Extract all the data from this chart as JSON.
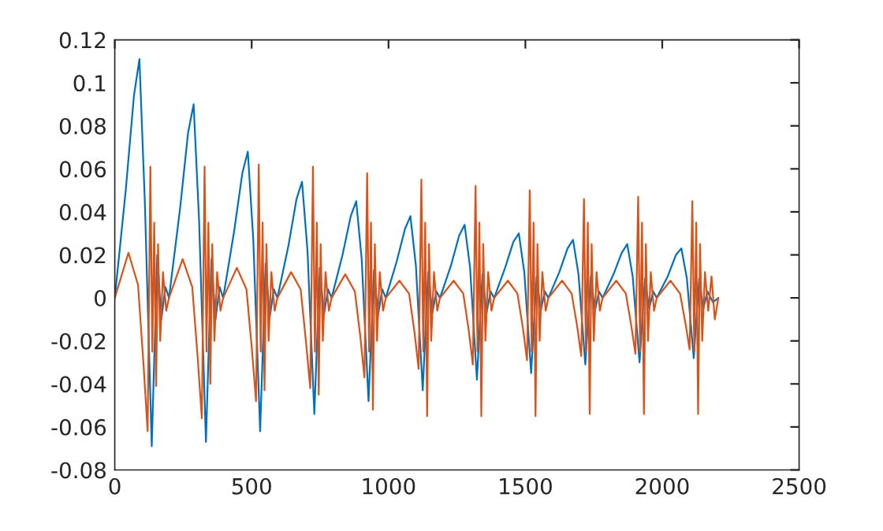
{
  "chart_data": {
    "type": "line",
    "xlim": [
      0,
      2500
    ],
    "xticks": [
      0,
      500,
      1000,
      1500,
      2000,
      2500
    ],
    "ylim": [
      -0.08,
      0.12
    ],
    "yticks": [
      -0.08,
      -0.06,
      -0.04,
      -0.02,
      0,
      0.02,
      0.04,
      0.06,
      0.08,
      0.1,
      0.12
    ],
    "grid": false,
    "legend": false,
    "line_style": "solid",
    "marker": "none",
    "series": [
      {
        "color": "#0072bd",
        "x": [
          0,
          40,
          70,
          90,
          110,
          135,
          155,
          170,
          185,
          198,
          238,
          268,
          288,
          308,
          333,
          353,
          368,
          383,
          396,
          436,
          466,
          486,
          506,
          531,
          551,
          566,
          581,
          594,
          634,
          664,
          684,
          704,
          729,
          749,
          764,
          779,
          792,
          832,
          862,
          882,
          902,
          927,
          947,
          962,
          977,
          990,
          1030,
          1060,
          1080,
          1100,
          1125,
          1145,
          1160,
          1175,
          1188,
          1228,
          1258,
          1278,
          1298,
          1323,
          1343,
          1358,
          1373,
          1386,
          1426,
          1456,
          1476,
          1496,
          1521,
          1541,
          1556,
          1571,
          1584,
          1624,
          1654,
          1674,
          1694,
          1719,
          1739,
          1754,
          1769,
          1782,
          1822,
          1852,
          1872,
          1892,
          1917,
          1937,
          1952,
          1967,
          1980,
          2020,
          2050,
          2070,
          2090,
          2115,
          2135,
          2150,
          2165,
          2185,
          2205
        ],
        "values": [
          0,
          0.05,
          0.094,
          0.111,
          0.044,
          -0.069,
          0.02,
          -0.01,
          0.005,
          0,
          0.041,
          0.077,
          0.09,
          0.036,
          -0.067,
          0.018,
          -0.01,
          0.005,
          0,
          0.031,
          0.058,
          0.068,
          0.027,
          -0.062,
          0.016,
          -0.009,
          0.004,
          0,
          0.024,
          0.046,
          0.054,
          0.022,
          -0.054,
          0.014,
          -0.008,
          0.004,
          0,
          0.02,
          0.038,
          0.045,
          0.018,
          -0.048,
          0.013,
          -0.008,
          0.004,
          0,
          0.017,
          0.032,
          0.038,
          0.015,
          -0.043,
          0.012,
          -0.007,
          0.003,
          0,
          0.015,
          0.029,
          0.034,
          0.014,
          -0.038,
          0.011,
          -0.007,
          0.003,
          0,
          0.014,
          0.026,
          0.03,
          0.012,
          -0.035,
          0.01,
          -0.006,
          0.003,
          0,
          0.012,
          0.023,
          0.027,
          0.011,
          -0.031,
          0.01,
          -0.006,
          0.003,
          0,
          0.011,
          0.021,
          0.025,
          0.01,
          -0.03,
          0.009,
          -0.005,
          0.003,
          0,
          0.01,
          0.02,
          0.023,
          0.009,
          -0.028,
          0.009,
          -0.005,
          0.003,
          -0.002,
          0
        ]
      },
      {
        "color": "#d95319",
        "x": [
          0,
          50,
          85,
          105,
          120,
          130,
          137,
          144,
          151,
          158,
          166,
          176,
          188,
          198,
          248,
          283,
          303,
          318,
          328,
          335,
          342,
          349,
          356,
          364,
          374,
          386,
          396,
          446,
          481,
          501,
          516,
          526,
          533,
          540,
          547,
          554,
          562,
          572,
          584,
          594,
          644,
          679,
          699,
          714,
          724,
          731,
          738,
          745,
          752,
          760,
          770,
          782,
          792,
          842,
          877,
          897,
          912,
          922,
          929,
          936,
          943,
          950,
          958,
          968,
          980,
          990,
          1040,
          1075,
          1095,
          1110,
          1120,
          1127,
          1134,
          1141,
          1148,
          1156,
          1166,
          1178,
          1188,
          1238,
          1273,
          1293,
          1308,
          1318,
          1325,
          1332,
          1339,
          1346,
          1354,
          1364,
          1376,
          1386,
          1436,
          1471,
          1491,
          1506,
          1516,
          1523,
          1530,
          1537,
          1544,
          1552,
          1562,
          1574,
          1584,
          1634,
          1669,
          1689,
          1704,
          1714,
          1721,
          1728,
          1735,
          1742,
          1750,
          1760,
          1772,
          1782,
          1832,
          1867,
          1887,
          1902,
          1912,
          1919,
          1926,
          1933,
          1940,
          1948,
          1958,
          1970,
          1980,
          2030,
          2065,
          2085,
          2100,
          2110,
          2117,
          2124,
          2131,
          2138,
          2146,
          2156,
          2168,
          2180,
          2192,
          2205
        ],
        "values": [
          0,
          0.021,
          0.006,
          -0.031,
          -0.062,
          0.061,
          -0.025,
          0.035,
          -0.041,
          0.025,
          -0.02,
          0.012,
          -0.006,
          0,
          0.018,
          0.005,
          -0.028,
          -0.056,
          0.061,
          -0.025,
          0.035,
          -0.04,
          0.025,
          -0.02,
          0.012,
          -0.006,
          0,
          0.014,
          0.004,
          -0.024,
          -0.048,
          0.062,
          -0.025,
          0.035,
          -0.043,
          0.025,
          -0.02,
          0.012,
          -0.006,
          0,
          0.012,
          0.004,
          -0.021,
          -0.042,
          0.061,
          -0.025,
          0.035,
          -0.045,
          0.025,
          -0.02,
          0.012,
          -0.006,
          0,
          0.011,
          0.003,
          -0.018,
          -0.037,
          0.058,
          -0.025,
          0.035,
          -0.052,
          0.025,
          -0.02,
          0.012,
          -0.006,
          0,
          0.008,
          0.002,
          -0.016,
          -0.033,
          0.055,
          -0.025,
          0.035,
          -0.055,
          0.025,
          -0.02,
          0.012,
          -0.006,
          0,
          0.008,
          0.002,
          -0.015,
          -0.031,
          0.052,
          -0.025,
          0.035,
          -0.055,
          0.025,
          -0.02,
          0.012,
          -0.006,
          0,
          0.008,
          0.002,
          -0.014,
          -0.029,
          0.05,
          -0.025,
          0.035,
          -0.055,
          0.025,
          -0.02,
          0.012,
          -0.006,
          0,
          0.008,
          0.002,
          -0.013,
          -0.027,
          0.046,
          -0.025,
          0.035,
          -0.054,
          0.025,
          -0.02,
          0.012,
          -0.006,
          0,
          0.008,
          0.002,
          -0.013,
          -0.026,
          0.047,
          -0.025,
          0.035,
          -0.054,
          0.025,
          -0.02,
          0.012,
          -0.006,
          0,
          0.008,
          0.002,
          -0.012,
          -0.024,
          0.045,
          -0.025,
          0.035,
          -0.054,
          0.025,
          -0.02,
          0.012,
          -0.006,
          0.01,
          -0.01,
          0
        ]
      }
    ]
  }
}
